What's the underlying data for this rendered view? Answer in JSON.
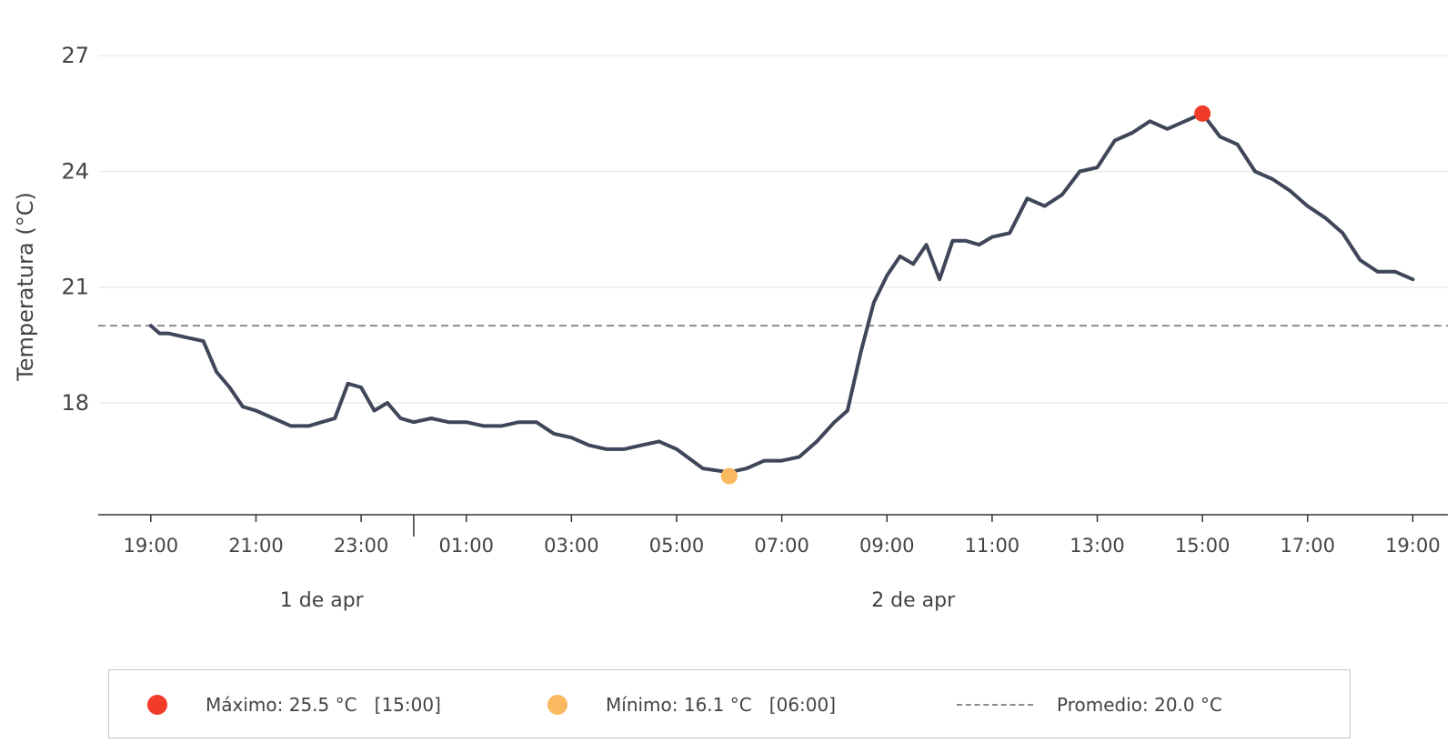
{
  "chart_data": {
    "type": "line",
    "title": "",
    "ylabel": "Temperatura (°C)",
    "xlabel": "",
    "ylim": [
      15.1,
      27.5
    ],
    "x_range": [
      "2024-04-01T18:00",
      "2024-04-02T19:40"
    ],
    "yticks": [
      18,
      21,
      24,
      27
    ],
    "xticks": [
      "19:00",
      "21:00",
      "23:00",
      "01:00",
      "03:00",
      "05:00",
      "07:00",
      "09:00",
      "11:00",
      "13:00",
      "15:00",
      "17:00",
      "19:00"
    ],
    "day_labels": [
      "1 de apr",
      "2 de apr"
    ],
    "grid": "horizontal",
    "series": [
      {
        "color": "#3f4659",
        "x": [
          "2024-04-01T19:00",
          "2024-04-01T19:10",
          "2024-04-01T19:20",
          "2024-04-01T19:40",
          "2024-04-01T20:00",
          "2024-04-01T20:15",
          "2024-04-01T20:30",
          "2024-04-01T20:45",
          "2024-04-01T21:00",
          "2024-04-01T21:20",
          "2024-04-01T21:40",
          "2024-04-01T22:00",
          "2024-04-01T22:15",
          "2024-04-01T22:30",
          "2024-04-01T22:45",
          "2024-04-01T23:00",
          "2024-04-01T23:15",
          "2024-04-01T23:30",
          "2024-04-01T23:45",
          "2024-04-02T00:00",
          "2024-04-02T00:20",
          "2024-04-02T00:40",
          "2024-04-02T01:00",
          "2024-04-02T01:20",
          "2024-04-02T01:40",
          "2024-04-02T02:00",
          "2024-04-02T02:20",
          "2024-04-02T02:40",
          "2024-04-02T03:00",
          "2024-04-02T03:20",
          "2024-04-02T03:40",
          "2024-04-02T04:00",
          "2024-04-02T04:20",
          "2024-04-02T04:40",
          "2024-04-02T05:00",
          "2024-04-02T05:30",
          "2024-04-02T06:00",
          "2024-04-02T06:20",
          "2024-04-02T06:40",
          "2024-04-02T07:00",
          "2024-04-02T07:20",
          "2024-04-02T07:40",
          "2024-04-02T08:00",
          "2024-04-02T08:15",
          "2024-04-02T08:30",
          "2024-04-02T08:45",
          "2024-04-02T09:00",
          "2024-04-02T09:15",
          "2024-04-02T09:30",
          "2024-04-02T09:45",
          "2024-04-02T10:00",
          "2024-04-02T10:15",
          "2024-04-02T10:30",
          "2024-04-02T10:45",
          "2024-04-02T11:00",
          "2024-04-02T11:20",
          "2024-04-02T11:40",
          "2024-04-02T12:00",
          "2024-04-02T12:20",
          "2024-04-02T12:40",
          "2024-04-02T13:00",
          "2024-04-02T13:20",
          "2024-04-02T13:40",
          "2024-04-02T14:00",
          "2024-04-02T14:20",
          "2024-04-02T14:40",
          "2024-04-02T15:00",
          "2024-04-02T15:20",
          "2024-04-02T15:40",
          "2024-04-02T16:00",
          "2024-04-02T16:20",
          "2024-04-02T16:40",
          "2024-04-02T17:00",
          "2024-04-02T17:20",
          "2024-04-02T17:40",
          "2024-04-02T18:00",
          "2024-04-02T18:20",
          "2024-04-02T18:40",
          "2024-04-02T19:00"
        ],
        "y": [
          20.0,
          19.8,
          19.8,
          19.7,
          19.6,
          18.8,
          18.4,
          17.9,
          17.8,
          17.6,
          17.4,
          17.4,
          17.5,
          17.6,
          18.5,
          18.4,
          17.8,
          18.0,
          17.6,
          17.5,
          17.6,
          17.5,
          17.5,
          17.4,
          17.4,
          17.5,
          17.5,
          17.2,
          17.1,
          16.9,
          16.8,
          16.8,
          16.9,
          17.0,
          16.8,
          16.3,
          16.2,
          16.3,
          16.5,
          16.5,
          16.6,
          17.0,
          17.5,
          17.8,
          19.3,
          20.6,
          21.3,
          21.8,
          21.6,
          22.1,
          21.2,
          22.2,
          22.2,
          22.1,
          22.3,
          22.4,
          23.3,
          23.1,
          23.4,
          24.0,
          24.1,
          24.8,
          25.0,
          25.3,
          25.1,
          25.3,
          25.5,
          24.9,
          24.7,
          24.0,
          23.8,
          23.5,
          23.1,
          22.8,
          22.4,
          21.7,
          21.4,
          21.4,
          21.2
        ]
      }
    ],
    "max": {
      "x": "2024-04-02T15:00",
      "y": 25.5,
      "color": "#f03c28"
    },
    "min": {
      "x": "2024-04-02T06:00",
      "y": 16.1,
      "color": "#fbb95f"
    },
    "mean": {
      "y": 20.0,
      "color": "#8c8c8c"
    },
    "legend_position": "bottom",
    "legend": [
      "Máximo: 25.5 °C   [15:00]",
      "Mínimo: 16.1 °C   [06:00]",
      "Promedio: 20.0 °C"
    ]
  }
}
